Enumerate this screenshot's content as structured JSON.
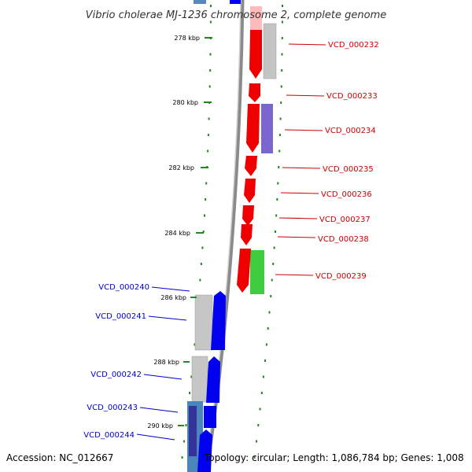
{
  "title": "Vibrio cholerae MJ-1236 chromosome 2, complete genome",
  "footer": {
    "accession": "Accession: NC_012667",
    "stats": "Topology: circular; Length: 1,086,784 bp; Genes: 1,008"
  },
  "ticks": [
    "278 kbp",
    "280 kbp",
    "282 kbp",
    "284 kbp",
    "286 kbp",
    "288 kbp",
    "290 kbp"
  ],
  "genes_forward": [
    "VCD_000232",
    "VCD_000233",
    "VCD_000234",
    "VCD_000235",
    "VCD_000236",
    "VCD_000237",
    "VCD_000238",
    "VCD_000239"
  ],
  "genes_reverse": [
    "VCD_000240",
    "VCD_000241",
    "VCD_000242",
    "VCD_000243",
    "VCD_000244"
  ],
  "colors": {
    "forward_cds": "#ff0000",
    "forward_label": "#cc0000",
    "reverse_cds": "#0000ff",
    "reverse_label": "#0000cc",
    "gc_content": "#00aa00",
    "backbone": "#888888",
    "secondary_gray": "#bbbbbb",
    "secondary_purple": "#7766cc",
    "secondary_green": "#44cc44",
    "secondary_teal": "#4488bb"
  }
}
